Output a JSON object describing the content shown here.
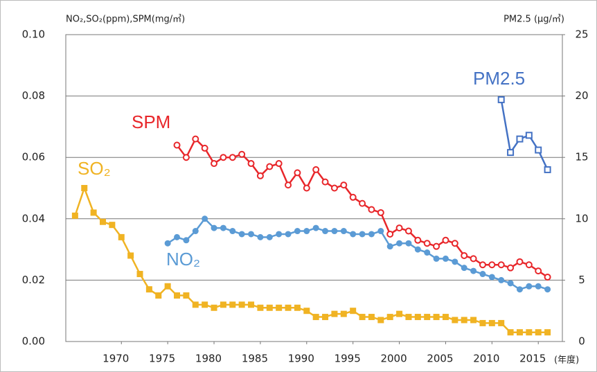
{
  "chart_data": {
    "type": "line",
    "y_label": "NO₂,SO₂(ppm),SPM(mg/㎥)",
    "y2_label": "PM2.5 (μg/㎥)",
    "x_label": "(年度)",
    "xlim": [
      1964,
      2017.6
    ],
    "xticks": [
      1970,
      1975,
      1980,
      1985,
      1990,
      1995,
      2000,
      2005,
      2010,
      2015
    ],
    "ylim": [
      0,
      0.1
    ],
    "yticks": [
      {
        "value": 0,
        "label": "0.00"
      },
      {
        "value": 0.02,
        "label": "0.02"
      },
      {
        "value": 0.04,
        "label": "0.04"
      },
      {
        "value": 0.06,
        "label": "0.06"
      },
      {
        "value": 0.08,
        "label": "0.08"
      },
      {
        "value": 0.1,
        "label": "0.10"
      }
    ],
    "y2lim": [
      0,
      25
    ],
    "y2ticks": [
      0,
      5,
      10,
      15,
      20,
      25
    ],
    "grid": true,
    "series": [
      {
        "name": "SO₂",
        "color": "#f0b323",
        "marker": "square",
        "filled": true,
        "x": [
          1965,
          1966,
          1967,
          1968,
          1969,
          1970,
          1971,
          1972,
          1973,
          1974,
          1975,
          1976,
          1977,
          1978,
          1979,
          1980,
          1981,
          1982,
          1983,
          1984,
          1985,
          1986,
          1987,
          1988,
          1989,
          1990,
          1991,
          1992,
          1993,
          1994,
          1995,
          1996,
          1997,
          1998,
          1999,
          2000,
          2001,
          2002,
          2003,
          2004,
          2005,
          2006,
          2007,
          2008,
          2009,
          2010,
          2011,
          2012,
          2013,
          2014,
          2015,
          2016
        ],
        "values": [
          0.041,
          0.05,
          0.042,
          0.039,
          0.038,
          0.034,
          0.028,
          0.022,
          0.017,
          0.015,
          0.018,
          0.015,
          0.015,
          0.012,
          0.012,
          0.011,
          0.012,
          0.012,
          0.012,
          0.012,
          0.011,
          0.011,
          0.011,
          0.011,
          0.011,
          0.01,
          0.008,
          0.008,
          0.009,
          0.009,
          0.01,
          0.008,
          0.008,
          0.007,
          0.008,
          0.009,
          0.008,
          0.008,
          0.008,
          0.008,
          0.008,
          0.007,
          0.007,
          0.007,
          0.006,
          0.006,
          0.006,
          0.003,
          0.003,
          0.003,
          0.003,
          0.003
        ]
      },
      {
        "name": "NO₂",
        "color": "#5b9bd5",
        "marker": "circle",
        "filled": true,
        "x": [
          1975,
          1976,
          1977,
          1978,
          1979,
          1980,
          1981,
          1982,
          1983,
          1984,
          1985,
          1986,
          1987,
          1988,
          1989,
          1990,
          1991,
          1992,
          1993,
          1994,
          1995,
          1996,
          1997,
          1998,
          1999,
          2000,
          2001,
          2002,
          2003,
          2004,
          2005,
          2006,
          2007,
          2008,
          2009,
          2010,
          2011,
          2012,
          2013,
          2014,
          2015,
          2016
        ],
        "values": [
          0.032,
          0.034,
          0.033,
          0.036,
          0.04,
          0.037,
          0.037,
          0.036,
          0.035,
          0.035,
          0.034,
          0.034,
          0.035,
          0.035,
          0.036,
          0.036,
          0.037,
          0.036,
          0.036,
          0.036,
          0.035,
          0.035,
          0.035,
          0.036,
          0.031,
          0.032,
          0.032,
          0.03,
          0.029,
          0.027,
          0.027,
          0.026,
          0.024,
          0.023,
          0.022,
          0.021,
          0.02,
          0.019,
          0.017,
          0.018,
          0.018,
          0.017
        ]
      },
      {
        "name": "SPM",
        "color": "#e8262a",
        "marker": "circle",
        "filled": false,
        "x": [
          1976,
          1977,
          1978,
          1979,
          1980,
          1981,
          1982,
          1983,
          1984,
          1985,
          1986,
          1987,
          1988,
          1989,
          1990,
          1991,
          1992,
          1993,
          1994,
          1995,
          1996,
          1997,
          1998,
          1999,
          2000,
          2001,
          2002,
          2003,
          2004,
          2005,
          2006,
          2007,
          2008,
          2009,
          2010,
          2011,
          2012,
          2013,
          2014,
          2015,
          2016
        ],
        "values": [
          0.064,
          0.06,
          0.066,
          0.063,
          0.058,
          0.06,
          0.06,
          0.061,
          0.058,
          0.054,
          0.057,
          0.058,
          0.051,
          0.055,
          0.05,
          0.056,
          0.052,
          0.05,
          0.051,
          0.047,
          0.045,
          0.043,
          0.042,
          0.035,
          0.037,
          0.036,
          0.033,
          0.032,
          0.031,
          0.033,
          0.032,
          0.028,
          0.027,
          0.025,
          0.025,
          0.025,
          0.024,
          0.026,
          0.025,
          0.023,
          0.021
        ]
      },
      {
        "name": "PM2.5",
        "color": "#4472c4",
        "marker": "square",
        "filled": false,
        "axis": "y2",
        "x": [
          2011,
          2012,
          2013,
          2014,
          2015,
          2016
        ],
        "values": [
          19.7,
          15.4,
          16.5,
          16.8,
          15.6,
          14.0
        ]
      }
    ]
  }
}
